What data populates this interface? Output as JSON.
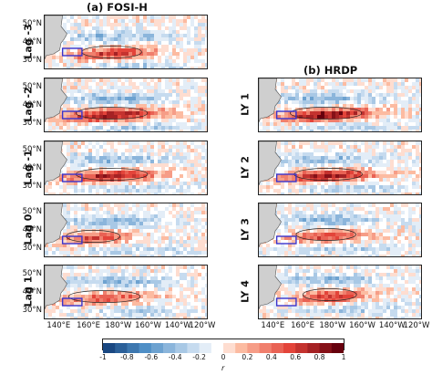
{
  "figure": {
    "left_title": "(a) FOSI-H",
    "right_title": "(b) HRDP"
  },
  "colors": {
    "negative_strong": "#08306b",
    "negative_mid": "#4f8fc6",
    "negative_weak": "#c6dbef",
    "neutral": "#ffffff",
    "positive_weak": "#fcbba1",
    "positive_mid": "#e3443a",
    "positive_strong": "#67000d",
    "land": "#cfcfcf",
    "box": "#3a33cc"
  },
  "chart_data": [
    {
      "type": "heatmap",
      "panel": "Lag -3",
      "column": "(a) FOSI-H",
      "row_label": "Lag -3",
      "lat_ticks": [
        "50°N",
        "40°N",
        "30°N"
      ],
      "lon_ticks": [],
      "ylim": [
        25,
        55
      ],
      "xlim": [
        130,
        240
      ],
      "core": {
        "lon_range": [
          150,
          200
        ],
        "lat": 35,
        "max_r": 0.7
      },
      "box": {
        "lon_range": [
          142,
          155
        ],
        "lat_range": [
          33,
          37
        ]
      }
    },
    {
      "type": "heatmap",
      "panel": "Lag -2",
      "column": "(a) FOSI-H",
      "row_label": "Lag -2",
      "lat_ticks": [
        "50°N",
        "40°N",
        "30°N"
      ],
      "lon_ticks": [],
      "ylim": [
        25,
        55
      ],
      "xlim": [
        130,
        240
      ],
      "core": {
        "lon_range": [
          145,
          205
        ],
        "lat": 36,
        "max_r": 0.9
      },
      "box": {
        "lon_range": [
          142,
          155
        ],
        "lat_range": [
          33,
          37
        ]
      }
    },
    {
      "type": "heatmap",
      "panel": "Lag -1",
      "column": "(a) FOSI-H",
      "row_label": "Lag -1",
      "lat_ticks": [
        "50°N",
        "40°N",
        "30°N"
      ],
      "lon_ticks": [],
      "ylim": [
        25,
        55
      ],
      "xlim": [
        130,
        240
      ],
      "core": {
        "lon_range": [
          145,
          205
        ],
        "lat": 37,
        "max_r": 0.8
      },
      "box": {
        "lon_range": [
          142,
          155
        ],
        "lat_range": [
          33,
          37
        ]
      }
    },
    {
      "type": "heatmap",
      "panel": "Lag 0",
      "column": "(a) FOSI-H",
      "row_label": "Lag 0",
      "lat_ticks": [
        "50°N",
        "40°N",
        "30°N"
      ],
      "lon_ticks": [],
      "ylim": [
        25,
        55
      ],
      "xlim": [
        130,
        240
      ],
      "core": {
        "lon_range": [
          140,
          185
        ],
        "lat": 37,
        "max_r": 0.6
      },
      "box": {
        "lon_range": [
          142,
          155
        ],
        "lat_range": [
          33,
          37
        ]
      }
    },
    {
      "type": "heatmap",
      "panel": "Lag 1",
      "column": "(a) FOSI-H",
      "row_label": "Lag 1",
      "lat_ticks": [
        "50°N",
        "40°N",
        "30°N"
      ],
      "lon_ticks": [
        "140°E",
        "160°E",
        "180°W",
        "160°W",
        "140°W",
        "120°W"
      ],
      "ylim": [
        25,
        55
      ],
      "xlim": [
        130,
        240
      ],
      "core": {
        "lon_range": [
          140,
          200
        ],
        "lat": 38,
        "max_r": 0.5
      },
      "box": {
        "lon_range": [
          142,
          155
        ],
        "lat_range": [
          33,
          37
        ]
      }
    },
    {
      "type": "heatmap",
      "panel": "LY 1",
      "column": "(b) HRDP",
      "row_label": "LY 1",
      "lat_ticks": [],
      "lon_ticks": [],
      "ylim": [
        25,
        55
      ],
      "xlim": [
        130,
        240
      ],
      "core": {
        "lon_range": [
          145,
          205
        ],
        "lat": 36,
        "max_r": 0.9
      },
      "box": {
        "lon_range": [
          142,
          155
        ],
        "lat_range": [
          33,
          37
        ]
      }
    },
    {
      "type": "heatmap",
      "panel": "LY 2",
      "column": "(b) HRDP",
      "row_label": "LY 2",
      "lat_ticks": [],
      "lon_ticks": [],
      "ylim": [
        25,
        55
      ],
      "xlim": [
        130,
        240
      ],
      "core": {
        "lon_range": [
          148,
          205
        ],
        "lat": 37,
        "max_r": 0.85
      },
      "box": {
        "lon_range": [
          142,
          155
        ],
        "lat_range": [
          33,
          37
        ]
      }
    },
    {
      "type": "heatmap",
      "panel": "LY 3",
      "column": "(b) HRDP",
      "row_label": "LY 3",
      "lat_ticks": [],
      "lon_ticks": [],
      "ylim": [
        25,
        55
      ],
      "xlim": [
        130,
        240
      ],
      "core": {
        "lon_range": [
          150,
          200
        ],
        "lat": 38,
        "max_r": 0.6
      },
      "box": {
        "lon_range": [
          142,
          155
        ],
        "lat_range": [
          33,
          37
        ]
      }
    },
    {
      "type": "heatmap",
      "panel": "LY 4",
      "column": "(b) HRDP",
      "row_label": "LY 4",
      "lat_ticks": [],
      "lon_ticks": [
        "140°E",
        "160°E",
        "180°W",
        "160°W",
        "140°W",
        "120°W"
      ],
      "ylim": [
        25,
        55
      ],
      "xlim": [
        130,
        240
      ],
      "core": {
        "lon_range": [
          155,
          200
        ],
        "lat": 39,
        "max_r": 0.65
      },
      "box": {
        "lon_range": [
          142,
          155
        ],
        "lat_range": [
          33,
          37
        ]
      }
    }
  ],
  "colorbar": {
    "ticks": [
      "-1",
      "-0.8",
      "-0.6",
      "-0.4",
      "-0.2",
      "0",
      "0.2",
      "0.4",
      "0.6",
      "0.8",
      "1"
    ],
    "range": [
      -1,
      1
    ],
    "label": "r"
  }
}
